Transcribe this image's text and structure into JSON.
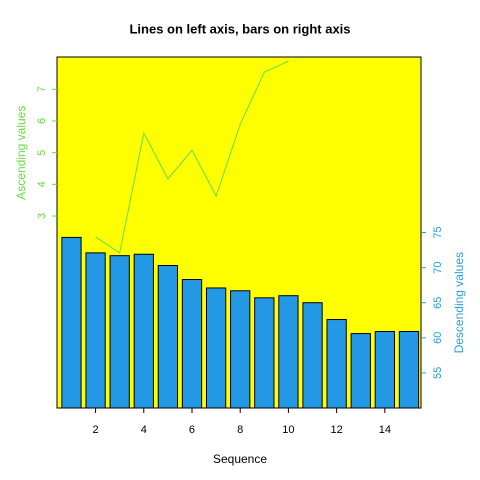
{
  "chart_data": {
    "type": "bar",
    "title": "Lines on left axis, bars on right axis",
    "xlabel": "Sequence",
    "ylabel": "Ascending values",
    "y2label": "Descending values",
    "background": "#ffff00",
    "x": [
      1,
      2,
      3,
      4,
      5,
      6,
      7,
      8,
      9,
      10,
      11,
      12,
      13,
      14,
      15
    ],
    "xlim": [
      0.4,
      15.5
    ],
    "xticks": [
      2,
      4,
      6,
      8,
      10,
      12,
      14
    ],
    "ylim": [
      -3.06,
      8.02
    ],
    "yticks": [
      3,
      4,
      5,
      6,
      7
    ],
    "y2lim": [
      50,
      100
    ],
    "y2ticks": [
      55,
      60,
      65,
      70,
      75
    ],
    "left_color": "#66dd44",
    "right_color": "#2b9fd9",
    "series": [
      {
        "type": "bar",
        "axis": "y2",
        "color": "#2399e6",
        "values": [
          74.3,
          72.1,
          71.7,
          71.9,
          70.3,
          68.3,
          67.1,
          66.7,
          65.7,
          66.0,
          65.0,
          62.6,
          60.6,
          60.9,
          60.9
        ]
      },
      {
        "type": "line",
        "axis": "y",
        "color": "#66dd44",
        "x": [
          2,
          3,
          4,
          5,
          6,
          7,
          8,
          9,
          10
        ],
        "values": [
          2.34,
          1.83,
          5.62,
          4.17,
          5.08,
          3.63,
          5.9,
          7.54,
          7.89
        ]
      }
    ]
  }
}
